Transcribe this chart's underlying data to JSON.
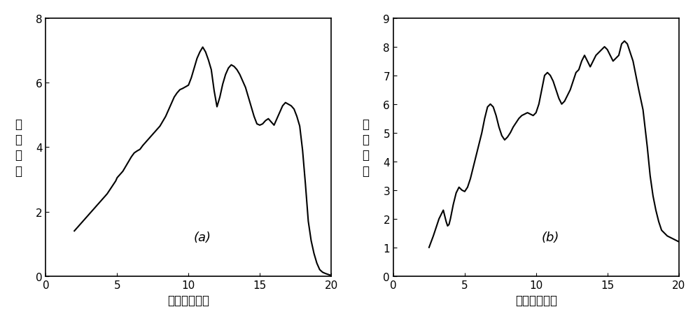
{
  "title_a": "(a)",
  "title_b": "(b)",
  "xlabel": "波长（微米）",
  "ylabel": "相对响应",
  "xlim": [
    0,
    20
  ],
  "ylim_a": [
    0,
    8
  ],
  "ylim_b": [
    0,
    9
  ],
  "xticks": [
    0,
    5,
    10,
    15,
    20
  ],
  "yticks_a": [
    0,
    2,
    4,
    6,
    8
  ],
  "yticks_b": [
    0,
    1,
    2,
    3,
    4,
    5,
    6,
    7,
    8,
    9
  ],
  "line_color": "#000000",
  "bg_color": "#ffffff",
  "curve_a_x": [
    2.0,
    2.5,
    3.0,
    3.5,
    4.0,
    4.3,
    4.6,
    4.9,
    5.0,
    5.2,
    5.4,
    5.6,
    5.8,
    6.0,
    6.2,
    6.4,
    6.6,
    6.8,
    7.0,
    7.2,
    7.4,
    7.6,
    7.8,
    8.0,
    8.2,
    8.4,
    8.6,
    8.8,
    9.0,
    9.2,
    9.4,
    9.6,
    9.8,
    10.0,
    10.2,
    10.4,
    10.6,
    10.8,
    11.0,
    11.2,
    11.4,
    11.6,
    11.8,
    12.0,
    12.2,
    12.4,
    12.6,
    12.8,
    13.0,
    13.2,
    13.4,
    13.6,
    13.8,
    14.0,
    14.2,
    14.4,
    14.6,
    14.8,
    15.0,
    15.2,
    15.4,
    15.6,
    15.8,
    16.0,
    16.2,
    16.4,
    16.6,
    16.8,
    17.0,
    17.2,
    17.4,
    17.6,
    17.8,
    18.0,
    18.2,
    18.4,
    18.6,
    18.8,
    19.0,
    19.2,
    19.4,
    19.6,
    19.8,
    20.0
  ],
  "curve_a_y": [
    1.4,
    1.65,
    1.9,
    2.15,
    2.4,
    2.55,
    2.75,
    2.95,
    3.05,
    3.15,
    3.25,
    3.4,
    3.55,
    3.7,
    3.82,
    3.88,
    3.93,
    4.05,
    4.15,
    4.25,
    4.35,
    4.45,
    4.55,
    4.65,
    4.8,
    4.95,
    5.15,
    5.35,
    5.55,
    5.68,
    5.78,
    5.82,
    5.87,
    5.92,
    6.15,
    6.45,
    6.75,
    6.95,
    7.1,
    6.95,
    6.7,
    6.4,
    5.75,
    5.25,
    5.55,
    5.95,
    6.25,
    6.45,
    6.55,
    6.5,
    6.4,
    6.25,
    6.05,
    5.85,
    5.55,
    5.25,
    4.95,
    4.72,
    4.68,
    4.72,
    4.82,
    4.88,
    4.78,
    4.68,
    4.88,
    5.08,
    5.28,
    5.38,
    5.33,
    5.28,
    5.18,
    4.95,
    4.65,
    3.9,
    2.85,
    1.7,
    1.1,
    0.7,
    0.4,
    0.2,
    0.12,
    0.08,
    0.05,
    0.02
  ],
  "curve_b_x": [
    2.5,
    2.8,
    3.0,
    3.2,
    3.4,
    3.5,
    3.6,
    3.7,
    3.8,
    3.9,
    4.0,
    4.2,
    4.4,
    4.6,
    4.8,
    5.0,
    5.2,
    5.4,
    5.6,
    5.8,
    6.0,
    6.2,
    6.4,
    6.6,
    6.8,
    7.0,
    7.2,
    7.4,
    7.6,
    7.8,
    8.0,
    8.2,
    8.4,
    8.6,
    8.8,
    9.0,
    9.2,
    9.4,
    9.6,
    9.8,
    10.0,
    10.2,
    10.4,
    10.6,
    10.8,
    11.0,
    11.2,
    11.4,
    11.6,
    11.8,
    12.0,
    12.2,
    12.4,
    12.6,
    12.8,
    13.0,
    13.2,
    13.4,
    13.6,
    13.8,
    14.0,
    14.2,
    14.4,
    14.6,
    14.8,
    15.0,
    15.2,
    15.4,
    15.6,
    15.8,
    16.0,
    16.2,
    16.4,
    16.6,
    16.8,
    17.0,
    17.2,
    17.5,
    17.8,
    18.0,
    18.2,
    18.4,
    18.6,
    18.8,
    19.0,
    19.2,
    19.4,
    19.6,
    19.8,
    20.0
  ],
  "curve_b_y": [
    1.0,
    1.4,
    1.7,
    2.0,
    2.2,
    2.3,
    2.1,
    1.9,
    1.75,
    1.8,
    2.0,
    2.5,
    2.9,
    3.1,
    3.0,
    2.95,
    3.1,
    3.4,
    3.8,
    4.2,
    4.6,
    5.0,
    5.5,
    5.9,
    6.0,
    5.9,
    5.6,
    5.2,
    4.9,
    4.75,
    4.85,
    5.0,
    5.2,
    5.35,
    5.5,
    5.6,
    5.65,
    5.7,
    5.65,
    5.6,
    5.7,
    6.0,
    6.5,
    7.0,
    7.1,
    7.0,
    6.8,
    6.5,
    6.2,
    6.0,
    6.1,
    6.3,
    6.5,
    6.8,
    7.1,
    7.2,
    7.5,
    7.7,
    7.5,
    7.3,
    7.5,
    7.7,
    7.8,
    7.9,
    8.0,
    7.9,
    7.7,
    7.5,
    7.6,
    7.7,
    8.1,
    8.2,
    8.1,
    7.8,
    7.5,
    7.0,
    6.5,
    5.8,
    4.5,
    3.5,
    2.8,
    2.3,
    1.9,
    1.6,
    1.5,
    1.4,
    1.35,
    1.3,
    1.25,
    1.2
  ]
}
